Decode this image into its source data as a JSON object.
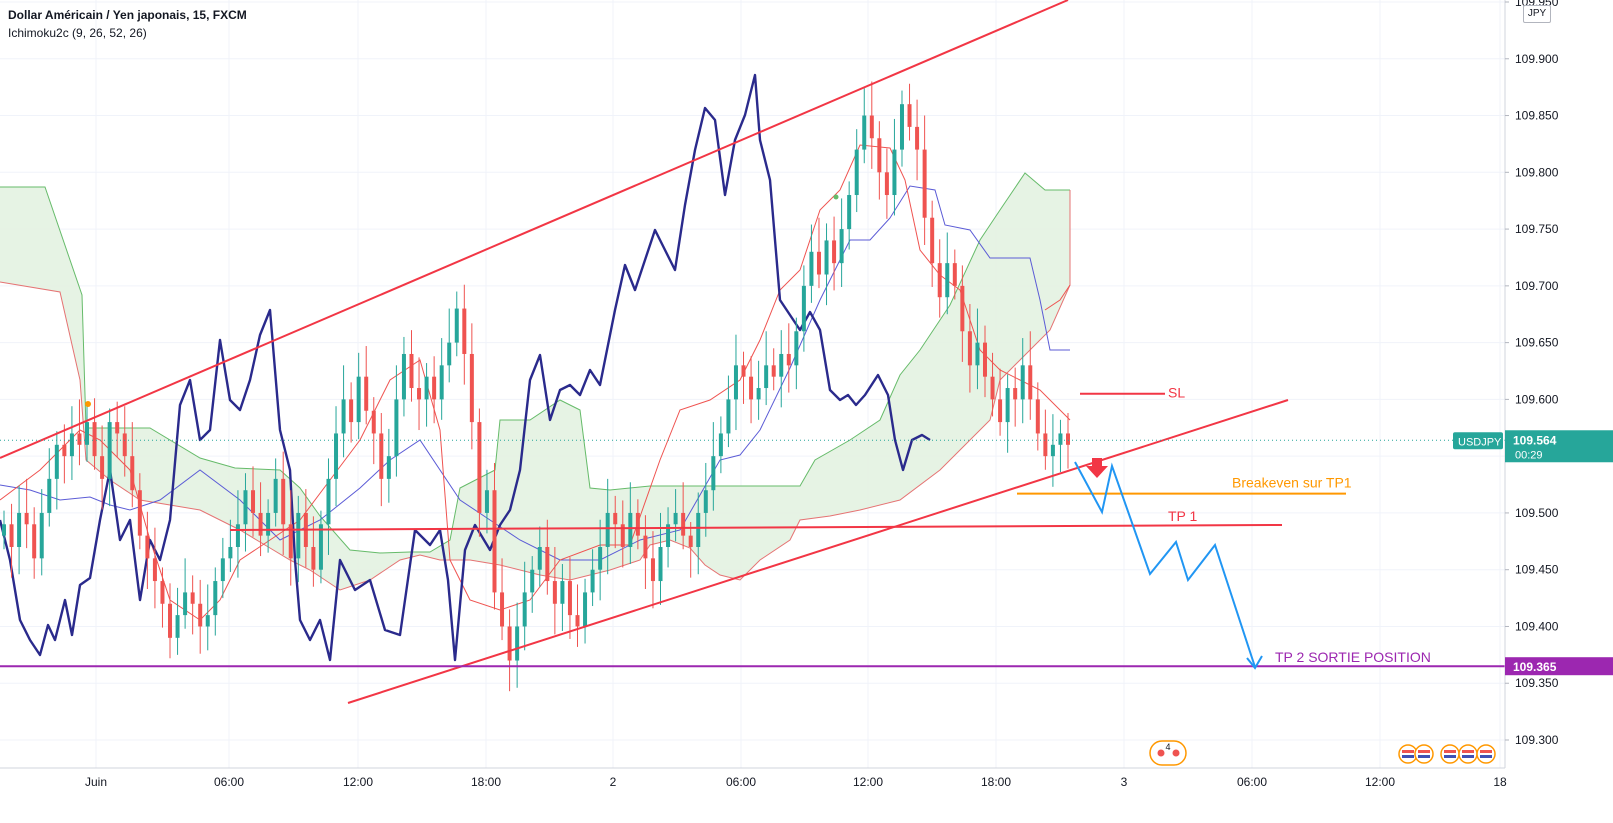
{
  "header": {
    "title": "Dollar Américain / Yen japonais, 15, FXCM",
    "indicator": "Ichimoku2c (9, 26, 52, 26)"
  },
  "price_axis": {
    "unit": "JPY",
    "ticks": [
      "109.950",
      "109.900",
      "109.850",
      "109.800",
      "109.750",
      "109.700",
      "109.650",
      "109.600",
      "109.550",
      "109.500",
      "109.450",
      "109.400",
      "109.350",
      "109.300"
    ],
    "current": {
      "symbol": "USDJPY",
      "price": "109.564",
      "countdown": "00:29"
    },
    "target_label": "109.365"
  },
  "time_axis": {
    "ticks": [
      "Juin",
      "06:00",
      "12:00",
      "18:00",
      "2",
      "06:00",
      "12:00",
      "18:00",
      "3",
      "06:00",
      "12:00",
      "18"
    ]
  },
  "annotations": {
    "sl": "SL",
    "breakeven": "Breakeven sur TP1",
    "tp1": "TP 1",
    "tp2": "TP 2 SORTIE POSITION"
  },
  "events": {
    "count": "4"
  },
  "colors": {
    "bull": "#26a69a",
    "bear": "#ef5350",
    "trend": "#f23645",
    "kijun_tenkan": "#ef5350",
    "kijun_blue": "#5b5bd6",
    "chikou": "#2a2a8c",
    "cloud_fill": "#e3f2e1",
    "cloud_edge": "#66bb6a",
    "projection": "#2196f3",
    "breakeven": "#ff9800",
    "tp2": "#9c27b0",
    "price_tag": "#26a69a"
  },
  "chart_data": {
    "type": "candlestick",
    "title": "Dollar Américain / Yen japonais, 15, FXCM",
    "xlabel": "",
    "ylabel": "",
    "ylim": [
      109.28,
      109.95
    ],
    "grid": true,
    "last_price": 109.564,
    "target_price": 109.365,
    "candles_close": [
      109.49,
      109.47,
      109.5,
      109.49,
      109.46,
      109.5,
      109.53,
      109.56,
      109.55,
      109.57,
      109.56,
      109.58,
      109.55,
      109.53,
      109.58,
      109.57,
      109.55,
      109.52,
      109.48,
      109.46,
      109.44,
      109.42,
      109.39,
      109.41,
      109.43,
      109.42,
      109.4,
      109.41,
      109.44,
      109.46,
      109.47,
      109.49,
      109.52,
      109.5,
      109.48,
      109.5,
      109.53,
      109.49,
      109.46,
      109.5,
      109.47,
      109.45,
      109.49,
      109.53,
      109.57,
      109.6,
      109.58,
      109.62,
      109.59,
      109.57,
      109.53,
      109.55,
      109.6,
      109.64,
      109.61,
      109.6,
      109.62,
      109.6,
      109.63,
      109.65,
      109.68,
      109.64,
      109.58,
      109.5,
      109.52,
      109.43,
      109.4,
      109.37,
      109.4,
      109.43,
      109.45,
      109.47,
      109.44,
      109.42,
      109.44,
      109.41,
      109.4,
      109.43,
      109.45,
      109.47,
      109.5,
      109.49,
      109.47,
      109.5,
      109.48,
      109.46,
      109.44,
      109.47,
      109.49,
      109.5,
      109.48,
      109.47,
      109.5,
      109.52,
      109.55,
      109.57,
      109.6,
      109.63,
      109.62,
      109.6,
      109.61,
      109.63,
      109.62,
      109.64,
      109.63,
      109.66,
      109.7,
      109.73,
      109.71,
      109.74,
      109.72,
      109.75,
      109.78,
      109.82,
      109.85,
      109.83,
      109.8,
      109.78,
      109.82,
      109.86,
      109.84,
      109.82,
      109.76,
      109.72,
      109.69,
      109.72,
      109.7,
      109.66,
      109.63,
      109.65,
      109.62,
      109.6,
      109.58,
      109.61,
      109.6,
      109.63,
      109.6,
      109.57,
      109.55,
      109.56,
      109.57,
      109.56
    ],
    "x_ticks": [
      "Juin",
      "06:00",
      "12:00",
      "18:00",
      "2",
      "06:00",
      "12:00",
      "18:00",
      "3",
      "06:00",
      "12:00",
      "18"
    ],
    "y_ticks": [
      109.95,
      109.9,
      109.85,
      109.8,
      109.75,
      109.7,
      109.65,
      109.6,
      109.55,
      109.5,
      109.45,
      109.4,
      109.35,
      109.3
    ],
    "levels": [
      {
        "label": "SL",
        "value": 109.605
      },
      {
        "label": "Breakeven sur TP1",
        "value": 109.517
      },
      {
        "label": "TP 1",
        "value": 109.49
      },
      {
        "label": "TP 2 SORTIE POSITION",
        "value": 109.365
      }
    ],
    "projection_path": [
      109.56,
      109.5,
      109.56,
      109.45,
      109.47,
      109.44,
      109.47,
      109.365
    ]
  }
}
